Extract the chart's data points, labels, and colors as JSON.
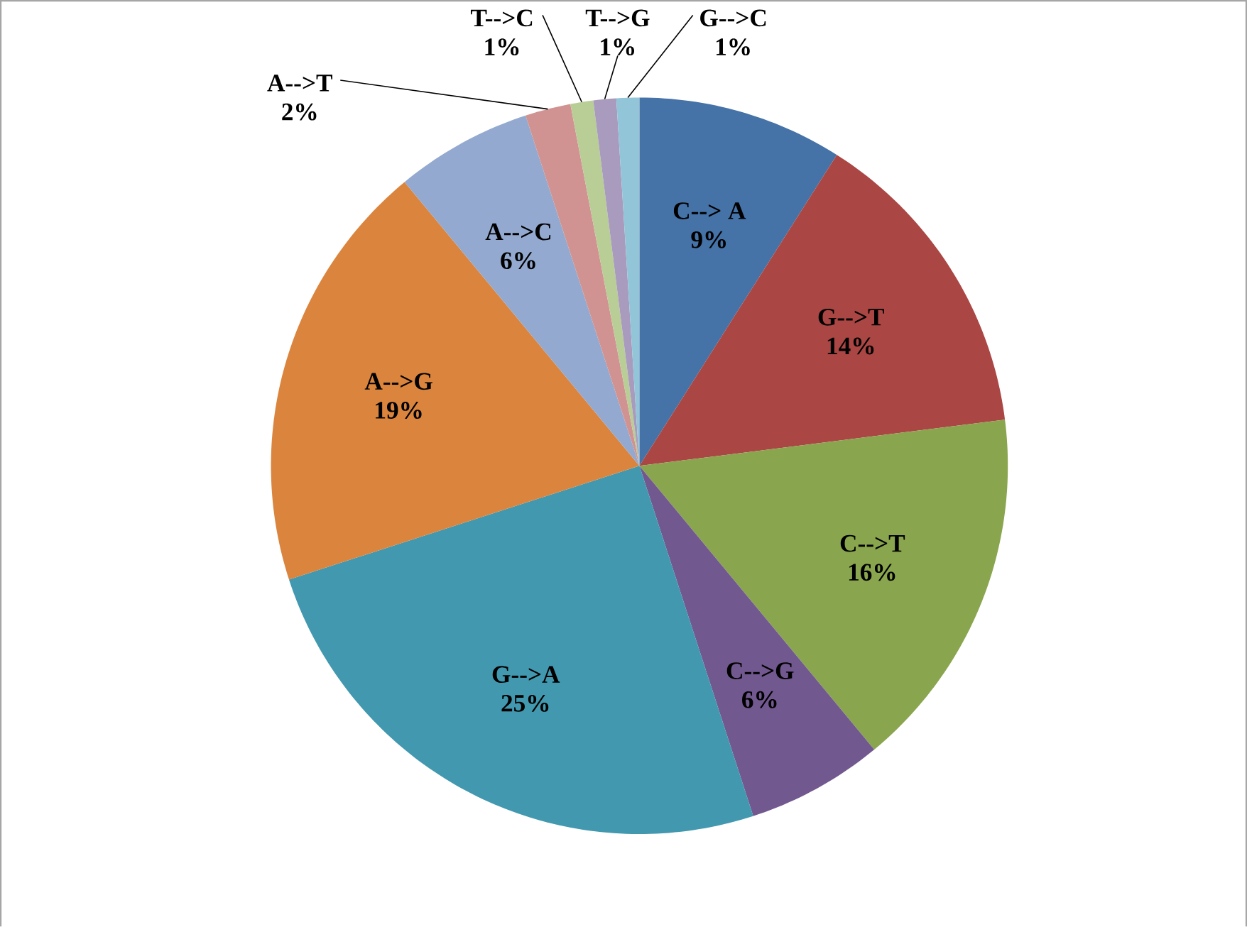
{
  "chart_data": {
    "type": "pie",
    "categories": [
      "C--> A",
      "G-->T",
      "C-->T",
      "C-->G",
      "G-->A",
      "A-->G",
      "A-->C",
      "A-->T",
      "T-->C",
      "T-->G",
      "G-->C"
    ],
    "values": [
      9,
      14,
      16,
      6,
      25,
      19,
      6,
      2,
      1,
      1,
      1
    ],
    "value_labels": [
      "9%",
      "14%",
      "16%",
      "6%",
      "25%",
      "19%",
      "6%",
      "2%",
      "1%",
      "1%",
      "1%"
    ],
    "colors": [
      "#4572a7",
      "#aa4643",
      "#89a54e",
      "#71588f",
      "#4198af",
      "#db843d",
      "#93a9cf",
      "#d19392",
      "#b9cd96",
      "#a99bbd",
      "#92c5d8"
    ]
  }
}
